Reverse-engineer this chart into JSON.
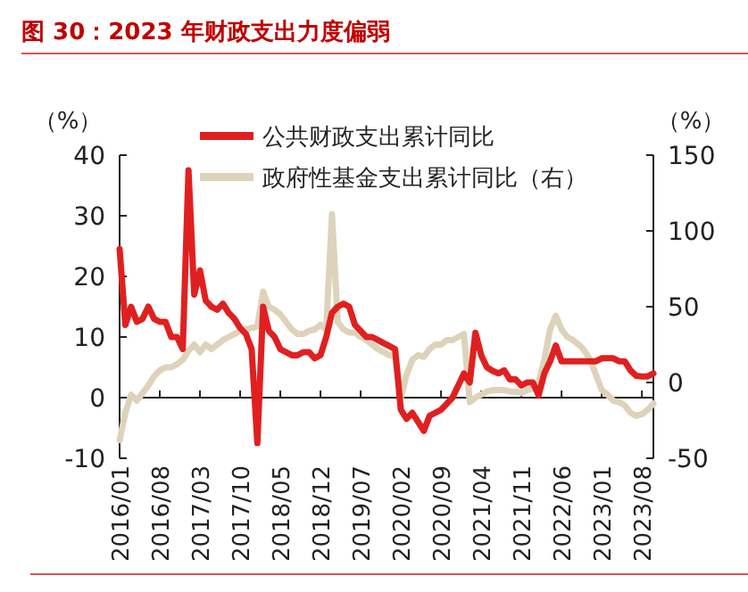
{
  "chart_data": {
    "type": "line",
    "title": "图 30：2023 年财政支出力度偏弱",
    "ylabel": "（%）",
    "y2label": "（%）",
    "x": [
      "2016-01",
      "2016-02",
      "2016-03",
      "2016-04",
      "2016-05",
      "2016-06",
      "2016-07",
      "2016-08",
      "2016-09",
      "2016-10",
      "2016-11",
      "2016-12",
      "2017-01",
      "2017-02",
      "2017-03",
      "2017-04",
      "2017-05",
      "2017-06",
      "2017-07",
      "2017-08",
      "2017-09",
      "2017-10",
      "2017-11",
      "2017-12",
      "2018-01",
      "2018-02",
      "2018-03",
      "2018-04",
      "2018-05",
      "2018-06",
      "2018-07",
      "2018-08",
      "2018-09",
      "2018-10",
      "2018-11",
      "2018-12",
      "2019-01",
      "2019-02",
      "2019-03",
      "2019-04",
      "2019-05",
      "2019-06",
      "2019-07",
      "2019-08",
      "2019-09",
      "2019-10",
      "2019-11",
      "2019-12",
      "2020-01",
      "2020-02",
      "2020-03",
      "2020-04",
      "2020-05",
      "2020-06",
      "2020-07",
      "2020-08",
      "2020-09",
      "2020-10",
      "2020-11",
      "2020-12",
      "2021-01",
      "2021-02",
      "2021-03",
      "2021-04",
      "2021-05",
      "2021-06",
      "2021-07",
      "2021-08",
      "2021-09",
      "2021-10",
      "2021-11",
      "2021-12",
      "2022-01",
      "2022-02",
      "2022-03",
      "2022-04",
      "2022-05",
      "2022-06",
      "2022-07",
      "2022-08",
      "2022-09",
      "2022-10",
      "2022-11",
      "2022-12",
      "2023-01",
      "2023-02",
      "2023-03",
      "2023-04",
      "2023-05",
      "2023-06",
      "2023-07",
      "2023-08",
      "2023-09",
      "2023-10"
    ],
    "series": [
      {
        "name": "公共财政支出累计同比",
        "color": "#e02020",
        "values": [
          24.5,
          12,
          15,
          12.5,
          13,
          15,
          13,
          12.5,
          12.5,
          10,
          10,
          8,
          37.5,
          17,
          21,
          16,
          15,
          14.5,
          15.5,
          14,
          13,
          11.5,
          10.5,
          8,
          -7.5,
          15,
          11,
          10,
          8,
          7.5,
          7,
          7,
          7.5,
          7.5,
          6.5,
          7,
          10,
          14,
          15,
          15.5,
          15,
          12,
          11,
          10,
          10,
          9.5,
          9,
          8.5,
          8,
          -2,
          -3.5,
          -2.5,
          -4,
          -5.5,
          -3,
          -2.5,
          -2,
          -1,
          0,
          2,
          4,
          2.5,
          10.7,
          7,
          5,
          4.4,
          4,
          4.5,
          3,
          3,
          2,
          2.5,
          2.5,
          0.4,
          4,
          6,
          8.6,
          6,
          6,
          6,
          6,
          6,
          6,
          6,
          6.5,
          6.5,
          6.5,
          6,
          6,
          4.5,
          3.6,
          3.5,
          3.5,
          4
        ]
      },
      {
        "name": "政府性基金支出累计同比（右）",
        "color": "#ddd3bb",
        "axis": "y2",
        "values": [
          -38,
          -20,
          -8,
          -12,
          -7,
          -2,
          4,
          8,
          10,
          10,
          12,
          15,
          21,
          25,
          20,
          25,
          22,
          25,
          28,
          30,
          32,
          34,
          35,
          36,
          37,
          60,
          50,
          48,
          45,
          40,
          35,
          32,
          32,
          34,
          35,
          38,
          35,
          111,
          40,
          35,
          33,
          33,
          30,
          28,
          25,
          22,
          20,
          18,
          17,
          -10,
          5,
          15,
          18,
          17,
          22,
          25,
          25,
          28,
          28,
          30,
          32,
          -13,
          -10,
          -8,
          -6,
          -5,
          -5,
          -5,
          -6,
          -6,
          -7,
          -5,
          -4,
          0,
          15,
          35,
          44,
          35,
          30,
          28,
          25,
          21,
          15,
          5,
          -5,
          -8,
          -12,
          -13,
          -15,
          -20,
          -22,
          -21,
          -18,
          -14
        ]
      }
    ],
    "xlim": [
      "2016-01",
      "2023-10"
    ],
    "xticks": [
      {
        "value": "2016-01",
        "label": "2016/01"
      },
      {
        "value": "2016-08",
        "label": "2016/08"
      },
      {
        "value": "2017-03",
        "label": "2017/03"
      },
      {
        "value": "2017-10",
        "label": "2017/10"
      },
      {
        "value": "2018-05",
        "label": "2018/05"
      },
      {
        "value": "2018-12",
        "label": "2018/12"
      },
      {
        "value": "2019-07",
        "label": "2019/07"
      },
      {
        "value": "2020-02",
        "label": "2020/02"
      },
      {
        "value": "2020-09",
        "label": "2020/09"
      },
      {
        "value": "2021-04",
        "label": "2021/04"
      },
      {
        "value": "2021-11",
        "label": "2021/11"
      },
      {
        "value": "2022-06",
        "label": "2022/06"
      },
      {
        "value": "2023-01",
        "label": "2023/01"
      },
      {
        "value": "2023-08",
        "label": "2023/08"
      }
    ],
    "ylim": [
      -10,
      40
    ],
    "yticks": [
      -10,
      0,
      10,
      20,
      30,
      40
    ],
    "y2lim": [
      -50,
      150
    ],
    "y2ticks": [
      -50,
      0,
      50,
      100,
      150
    ],
    "legend": "top",
    "marker": "none",
    "line_style": "solid"
  }
}
